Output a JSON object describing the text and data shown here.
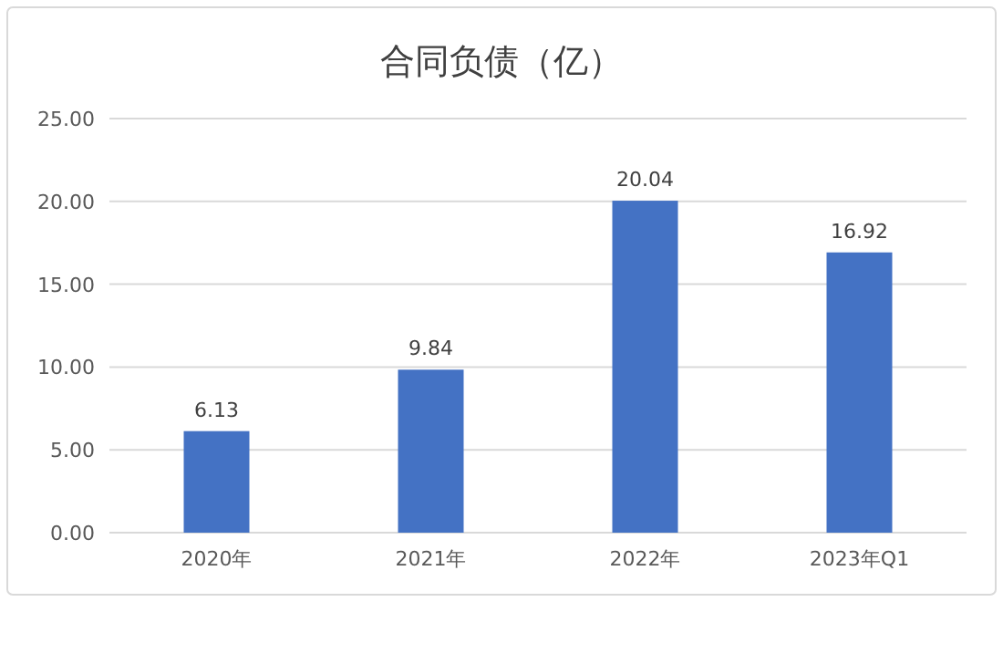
{
  "chart_data": {
    "type": "bar",
    "title": "合同负债（亿）",
    "categories": [
      "2020年",
      "2021年",
      "2022年",
      "2023年Q1"
    ],
    "values": [
      6.13,
      9.84,
      20.04,
      16.92
    ],
    "color": "#4472c4",
    "ylim": [
      0,
      25
    ],
    "yticks": [
      {
        "value": 0,
        "label": "0.00"
      },
      {
        "value": 5,
        "label": "5.00"
      },
      {
        "value": 10,
        "label": "10.00"
      },
      {
        "value": 15,
        "label": "15.00"
      },
      {
        "value": 20,
        "label": "20.00"
      },
      {
        "value": 25,
        "label": "25.00"
      }
    ],
    "grid": "y",
    "data_labels": true
  }
}
